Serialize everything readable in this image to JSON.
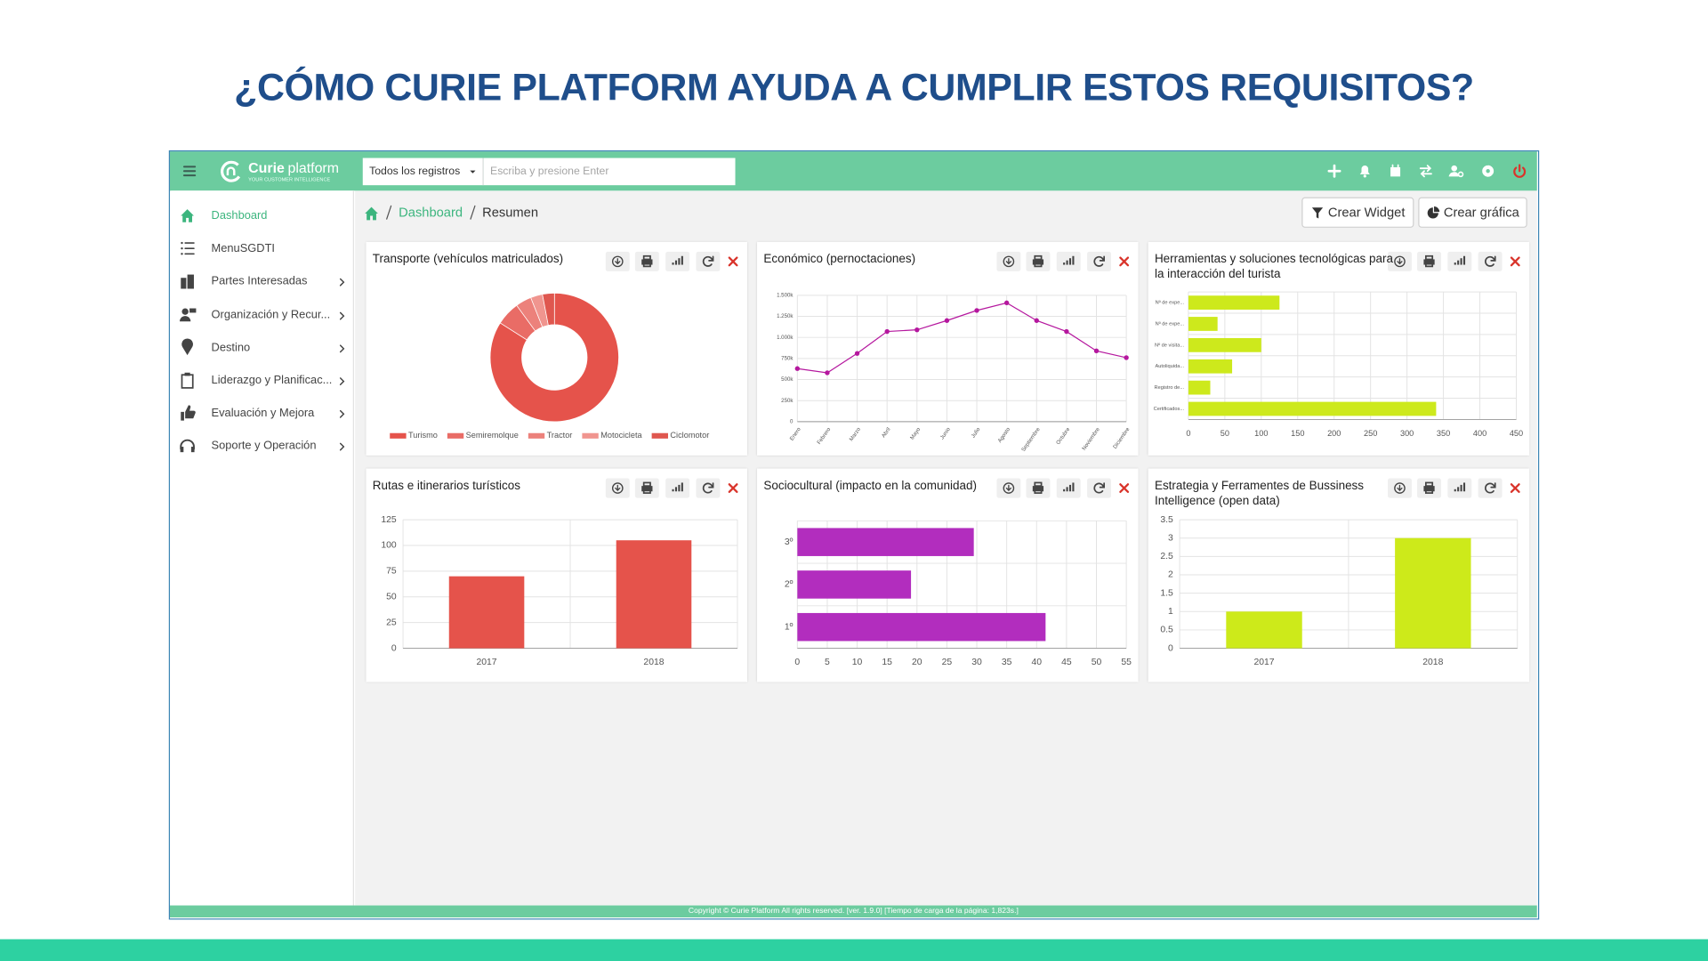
{
  "slide_title": "¿CÓMO CURIE PLATFORM AYUDA A CUMPLIR ESTOS REQUISITOS?",
  "navbar": {
    "logo_name": "Curie",
    "logo_suffix": "platform",
    "logo_tagline": "YOUR CUSTOMER INTELLIGENCE",
    "search_scope": "Todos los registros",
    "search_placeholder": "Escriba y presione Enter"
  },
  "sidebar": [
    {
      "label": "Dashboard",
      "active": true
    },
    {
      "label": "MenuSGDTI"
    },
    {
      "label": "Partes Interesadas",
      "submenu": true
    },
    {
      "label": "Organización y Recur...",
      "submenu": true
    },
    {
      "label": "Destino",
      "submenu": true
    },
    {
      "label": "Liderazgo y Planificac...",
      "submenu": true
    },
    {
      "label": "Evaluación y Mejora",
      "submenu": true
    },
    {
      "label": "Soporte y Operación",
      "submenu": true
    }
  ],
  "breadcrumb": [
    "Dashboard",
    "Resumen"
  ],
  "buttons": [
    "Crear Widget",
    "Crear gráfica"
  ],
  "footer": "Copyright © Curie Platform All rights reserved. [ver. 1.9.0] [Tiempo de carga de la página: 1,823s.]",
  "chart_data": [
    {
      "type": "donut",
      "title": "Transporte (vehículos matriculados)",
      "categories": [
        "Turismo",
        "Semiremolque",
        "Tractor",
        "Motocicleta",
        "Ciclomotor"
      ],
      "values": [
        84,
        6,
        4,
        3,
        3
      ],
      "colors": [
        "#e5534b",
        "#e96c66",
        "#ec817b",
        "#f0958f",
        "#df574f"
      ],
      "legend": "bottom"
    },
    {
      "type": "line",
      "title": "Económico (pernoctaciones)",
      "categories": [
        "Enero",
        "Febrero",
        "Marzo",
        "Abril",
        "Mayo",
        "Junio",
        "Julio",
        "Agosto",
        "Septiembre",
        "Octubre",
        "Noviembre",
        "Diciembre"
      ],
      "values": [
        630000,
        580000,
        810000,
        1070000,
        1090000,
        1200000,
        1320000,
        1410000,
        1200000,
        1070000,
        840000,
        760000
      ],
      "color": "#b5179e",
      "ylim": [
        0,
        1500000
      ],
      "yticks": [
        0,
        {
          "value": 250000,
          "label": "250k"
        },
        {
          "value": 500000,
          "label": "500k"
        },
        {
          "value": 750000,
          "label": "750k"
        },
        {
          "value": 1000000,
          "label": "1.000k"
        },
        {
          "value": 1250000,
          "label": "1.250k"
        },
        {
          "value": 1500000,
          "label": "1.500k"
        }
      ],
      "grid": true
    },
    {
      "type": "bar",
      "orientation": "horizontal",
      "title": "Herramientas y soluciones tecnológicas para la interacción del turista",
      "categories": [
        "Nº de expe...",
        "Nº de expe...",
        "Nº de visita...",
        "Autoliquida...",
        "Registro de...",
        "Certificados..."
      ],
      "values": [
        125,
        40,
        100,
        60,
        30,
        340
      ],
      "color": "#cde91c",
      "xlim": [
        0,
        450
      ],
      "xticks": [
        0,
        50,
        100,
        150,
        200,
        250,
        300,
        350,
        400,
        450
      ],
      "grid": true
    },
    {
      "type": "bar",
      "title": "Rutas e itinerarios turísticos",
      "categories": [
        "2017",
        "2018"
      ],
      "values": [
        70,
        105
      ],
      "color": "#e5534b",
      "ylim": [
        0,
        125
      ],
      "yticks": [
        0,
        25,
        50,
        75,
        100,
        125
      ],
      "grid": true
    },
    {
      "type": "bar",
      "orientation": "horizontal",
      "title": "Sociocultural (impacto en la comunidad)",
      "categories": [
        "3º",
        "2º",
        "1º"
      ],
      "values": [
        29.5,
        19,
        41.5
      ],
      "color": "#b22dbe",
      "xlim": [
        0,
        55
      ],
      "xticks": [
        0,
        5,
        10,
        15,
        20,
        25,
        30,
        35,
        40,
        45,
        50,
        55
      ],
      "grid": true
    },
    {
      "type": "bar",
      "title": "Estrategia y Ferramentes de Bussiness Intelligence (open data)",
      "categories": [
        "2017",
        "2018"
      ],
      "values": [
        1,
        3
      ],
      "color": "#cdea1a",
      "ylim": [
        0,
        3.5
      ],
      "yticks": [
        0,
        0.5,
        1,
        1.5,
        2,
        2.5,
        3,
        3.5
      ],
      "grid": true
    }
  ]
}
